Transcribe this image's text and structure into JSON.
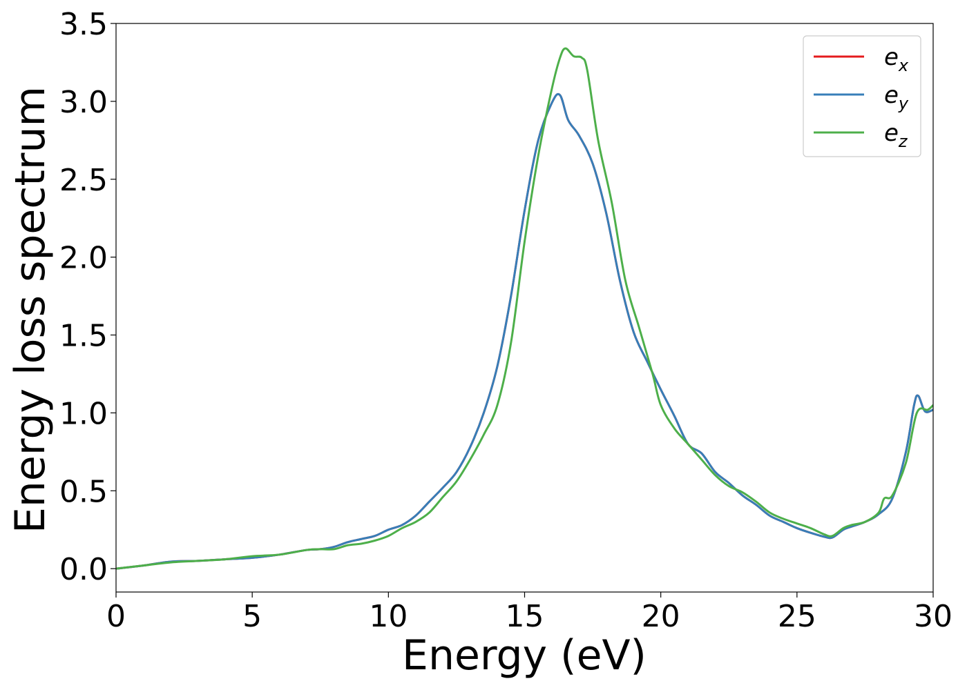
{
  "chart_data": {
    "type": "line",
    "title": "",
    "xlabel": "Energy (eV)",
    "ylabel": "Energy loss spectrum",
    "xlim": [
      0,
      30
    ],
    "ylim": [
      -0.15,
      3.5
    ],
    "xticks": [
      0,
      5,
      10,
      15,
      20,
      25,
      30
    ],
    "xtick_labels": [
      "0",
      "5",
      "10",
      "15",
      "20",
      "25",
      "30"
    ],
    "yticks": [
      0.0,
      0.5,
      1.0,
      1.5,
      2.0,
      2.5,
      3.0,
      3.5
    ],
    "ytick_labels": [
      "0.0",
      "0.5",
      "1.0",
      "1.5",
      "2.0",
      "2.5",
      "3.0",
      "3.5"
    ],
    "grid": false,
    "legend_position": "top-right",
    "series": [
      {
        "name": "e_x",
        "legend_base": "e",
        "legend_sub": "x",
        "color": "#e41a1c",
        "x": [
          0,
          1,
          2,
          3,
          4,
          5,
          6,
          7,
          7.5,
          8,
          8.5,
          9,
          9.5,
          10,
          10.5,
          11,
          11.5,
          12,
          12.5,
          13,
          13.5,
          14,
          14.5,
          15,
          15.5,
          16,
          16.3,
          16.6,
          17,
          17.5,
          18,
          18.5,
          19,
          19.5,
          20,
          20.5,
          21,
          21.5,
          22,
          22.5,
          23,
          23.5,
          24,
          24.5,
          25,
          25.5,
          26,
          26.3,
          26.7,
          27,
          27.5,
          28,
          28.5,
          29,
          29.3,
          29.45,
          29.7,
          30
        ],
        "values": [
          0.0,
          0.02,
          0.045,
          0.05,
          0.06,
          0.07,
          0.09,
          0.12,
          0.125,
          0.14,
          0.17,
          0.19,
          0.21,
          0.25,
          0.28,
          0.34,
          0.43,
          0.52,
          0.62,
          0.78,
          1.0,
          1.3,
          1.75,
          2.3,
          2.75,
          2.99,
          3.04,
          2.88,
          2.78,
          2.6,
          2.28,
          1.85,
          1.52,
          1.33,
          1.15,
          0.98,
          0.8,
          0.74,
          0.62,
          0.55,
          0.47,
          0.41,
          0.34,
          0.3,
          0.26,
          0.23,
          0.205,
          0.2,
          0.25,
          0.27,
          0.3,
          0.35,
          0.45,
          0.75,
          1.05,
          1.11,
          1.01,
          1.02
        ]
      },
      {
        "name": "e_y",
        "legend_base": "e",
        "legend_sub": "y",
        "color": "#377eb8",
        "x": [
          0,
          1,
          2,
          3,
          4,
          5,
          6,
          7,
          7.5,
          8,
          8.5,
          9,
          9.5,
          10,
          10.5,
          11,
          11.5,
          12,
          12.5,
          13,
          13.5,
          14,
          14.5,
          15,
          15.5,
          16,
          16.3,
          16.6,
          17,
          17.5,
          18,
          18.5,
          19,
          19.5,
          20,
          20.5,
          21,
          21.5,
          22,
          22.5,
          23,
          23.5,
          24,
          24.5,
          25,
          25.5,
          26,
          26.3,
          26.7,
          27,
          27.5,
          28,
          28.5,
          29,
          29.3,
          29.45,
          29.7,
          30
        ],
        "values": [
          0.0,
          0.02,
          0.045,
          0.05,
          0.06,
          0.07,
          0.09,
          0.12,
          0.125,
          0.14,
          0.17,
          0.19,
          0.21,
          0.25,
          0.28,
          0.34,
          0.43,
          0.52,
          0.62,
          0.78,
          1.0,
          1.3,
          1.75,
          2.3,
          2.75,
          2.99,
          3.04,
          2.88,
          2.78,
          2.6,
          2.28,
          1.85,
          1.52,
          1.33,
          1.15,
          0.98,
          0.8,
          0.74,
          0.62,
          0.55,
          0.47,
          0.41,
          0.34,
          0.3,
          0.26,
          0.23,
          0.205,
          0.2,
          0.25,
          0.27,
          0.3,
          0.35,
          0.45,
          0.75,
          1.05,
          1.11,
          1.01,
          1.02
        ]
      },
      {
        "name": "e_z",
        "legend_base": "e",
        "legend_sub": "z",
        "color": "#4daf4a",
        "x": [
          0,
          1,
          2,
          3,
          4,
          5,
          6,
          7,
          7.5,
          8,
          8.5,
          9,
          9.5,
          10,
          10.5,
          11,
          11.5,
          12,
          12.5,
          13,
          13.5,
          14,
          14.5,
          15,
          15.5,
          16,
          16.3,
          16.5,
          16.8,
          17.1,
          17.3,
          17.7,
          18.2,
          18.7,
          19.2,
          19.7,
          20,
          20.5,
          21,
          21.5,
          22,
          22.5,
          23,
          23.5,
          24,
          24.5,
          25,
          25.5,
          26,
          26.3,
          26.7,
          27,
          27.5,
          28,
          28.2,
          28.5,
          29,
          29.4,
          29.8,
          30
        ],
        "values": [
          0.0,
          0.02,
          0.04,
          0.05,
          0.06,
          0.08,
          0.09,
          0.12,
          0.125,
          0.125,
          0.15,
          0.16,
          0.18,
          0.21,
          0.26,
          0.3,
          0.36,
          0.46,
          0.56,
          0.7,
          0.86,
          1.05,
          1.45,
          2.1,
          2.65,
          3.08,
          3.28,
          3.34,
          3.29,
          3.28,
          3.2,
          2.75,
          2.35,
          1.85,
          1.55,
          1.25,
          1.05,
          0.9,
          0.8,
          0.7,
          0.6,
          0.53,
          0.49,
          0.43,
          0.36,
          0.32,
          0.29,
          0.26,
          0.22,
          0.21,
          0.26,
          0.28,
          0.3,
          0.36,
          0.45,
          0.47,
          0.68,
          1.0,
          1.02,
          1.05
        ]
      }
    ]
  }
}
